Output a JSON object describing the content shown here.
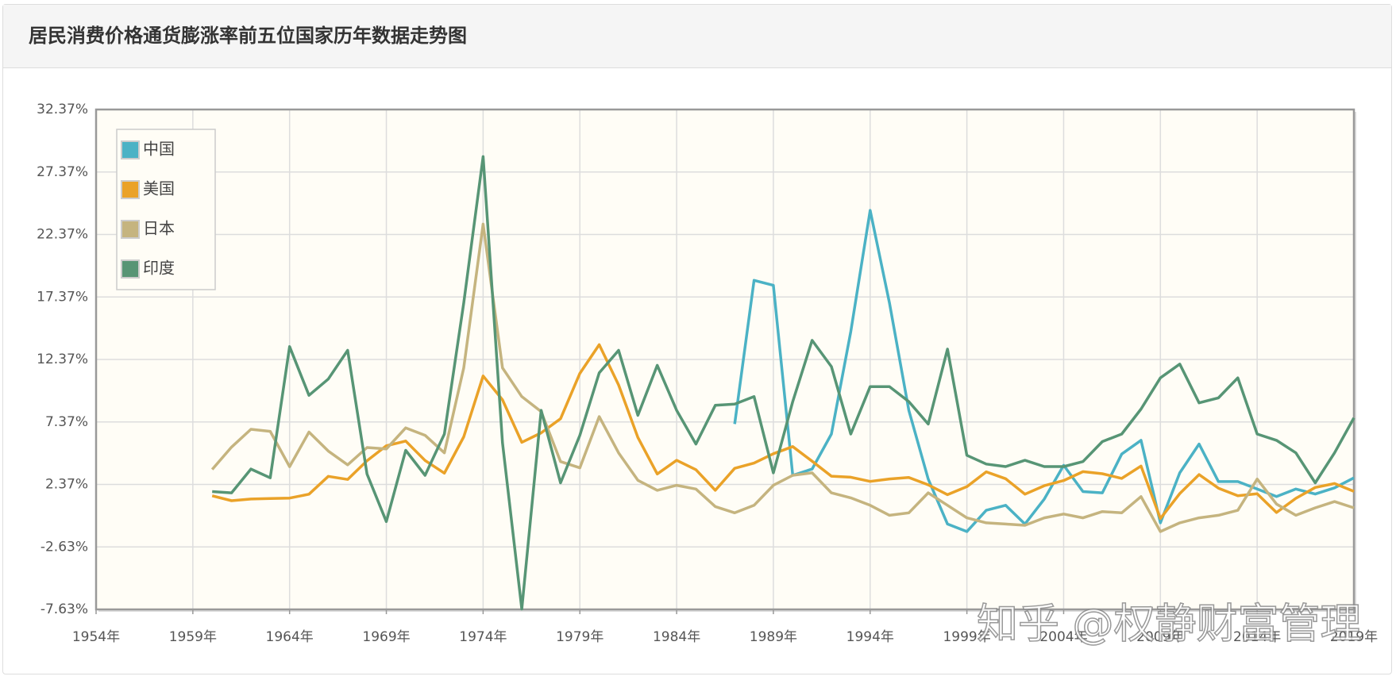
{
  "title": "居民消费价格通货膨涨率前五位国家历年数据走势图",
  "watermark": "知乎 @权静财富管理",
  "chart_data": {
    "type": "line",
    "x": [
      1960,
      1961,
      1962,
      1963,
      1964,
      1965,
      1966,
      1967,
      1968,
      1969,
      1970,
      1971,
      1972,
      1973,
      1974,
      1975,
      1976,
      1977,
      1978,
      1979,
      1980,
      1981,
      1982,
      1983,
      1984,
      1985,
      1986,
      1987,
      1988,
      1989,
      1990,
      1991,
      1992,
      1993,
      1994,
      1995,
      1996,
      1997,
      1998,
      1999,
      2000,
      2001,
      2002,
      2003,
      2004,
      2005,
      2006,
      2007,
      2008,
      2009,
      2010,
      2011,
      2012,
      2013,
      2014,
      2015,
      2016,
      2017,
      2018,
      2019
    ],
    "series": [
      {
        "name": "中国",
        "color": "#4bb2c5",
        "values": [
          null,
          null,
          null,
          null,
          null,
          null,
          null,
          null,
          null,
          null,
          null,
          null,
          null,
          null,
          null,
          null,
          null,
          null,
          null,
          null,
          null,
          null,
          null,
          null,
          null,
          null,
          null,
          7.2,
          18.7,
          18.3,
          3.1,
          3.6,
          6.4,
          14.6,
          24.3,
          16.9,
          8.3,
          2.8,
          -0.8,
          -1.4,
          0.3,
          0.7,
          -0.8,
          1.2,
          3.9,
          1.8,
          1.7,
          4.8,
          5.9,
          -0.7,
          3.3,
          5.6,
          2.6,
          2.6,
          2.0,
          1.4,
          2.0,
          1.6,
          2.1,
          2.9
        ]
      },
      {
        "name": "美国",
        "color": "#eaa228",
        "values": [
          1.46,
          1.07,
          1.2,
          1.24,
          1.28,
          1.59,
          3.02,
          2.77,
          4.27,
          5.46,
          5.84,
          4.29,
          3.27,
          6.18,
          11.05,
          9.14,
          5.74,
          6.5,
          7.63,
          11.25,
          13.55,
          10.33,
          6.13,
          3.21,
          4.3,
          3.55,
          1.9,
          3.66,
          4.08,
          4.83,
          5.4,
          4.23,
          3.03,
          2.95,
          2.61,
          2.81,
          2.93,
          2.34,
          1.55,
          2.19,
          3.38,
          2.83,
          1.59,
          2.27,
          2.68,
          3.39,
          3.23,
          2.85,
          3.84,
          -0.36,
          1.64,
          3.16,
          2.07,
          1.46,
          1.62,
          0.12,
          1.26,
          2.13,
          2.44,
          1.81
        ]
      },
      {
        "name": "日本",
        "color": "#c5b47f",
        "values": [
          3.57,
          5.36,
          6.78,
          6.62,
          3.79,
          6.56,
          5.04,
          3.94,
          5.32,
          5.21,
          6.9,
          6.3,
          4.9,
          11.7,
          23.2,
          11.7,
          9.4,
          8.2,
          4.2,
          3.7,
          7.8,
          4.9,
          2.7,
          1.9,
          2.3,
          2.0,
          0.6,
          0.1,
          0.7,
          2.3,
          3.1,
          3.3,
          1.7,
          1.3,
          0.7,
          -0.1,
          0.1,
          1.7,
          0.7,
          -0.3,
          -0.7,
          -0.8,
          -0.9,
          -0.3,
          0.0,
          -0.3,
          0.2,
          0.1,
          1.4,
          -1.4,
          -0.7,
          -0.3,
          -0.1,
          0.3,
          2.8,
          0.8,
          -0.1,
          0.5,
          1.0,
          0.5
        ]
      },
      {
        "name": "印度",
        "color": "#579575",
        "values": [
          1.8,
          1.7,
          3.6,
          2.9,
          13.4,
          9.5,
          10.8,
          13.1,
          3.2,
          -0.6,
          5.1,
          3.1,
          6.4,
          16.9,
          28.6,
          5.7,
          -7.6,
          8.3,
          2.5,
          6.3,
          11.3,
          13.1,
          7.9,
          11.9,
          8.3,
          5.6,
          8.7,
          8.8,
          9.4,
          3.3,
          9.0,
          13.9,
          11.8,
          6.4,
          10.2,
          10.2,
          9.0,
          7.2,
          13.2,
          4.7,
          4.0,
          3.8,
          4.3,
          3.8,
          3.8,
          4.2,
          5.8,
          6.4,
          8.4,
          10.9,
          12.0,
          8.9,
          9.3,
          10.9,
          6.4,
          5.9,
          4.9,
          2.5,
          4.9,
          7.7
        ]
      }
    ],
    "xlim": [
      1954,
      2019
    ],
    "xticks": [
      {
        "value": 1954,
        "label": "1954年"
      },
      {
        "value": 1959,
        "label": "1959年"
      },
      {
        "value": 1964,
        "label": "1964年"
      },
      {
        "value": 1969,
        "label": "1969年"
      },
      {
        "value": 1974,
        "label": "1974年"
      },
      {
        "value": 1979,
        "label": "1979年"
      },
      {
        "value": 1984,
        "label": "1984年"
      },
      {
        "value": 1989,
        "label": "1989年"
      },
      {
        "value": 1994,
        "label": "1994年"
      },
      {
        "value": 1999,
        "label": "1999年"
      },
      {
        "value": 2004,
        "label": "2004年"
      },
      {
        "value": 2009,
        "label": "2009年"
      },
      {
        "value": 2014,
        "label": "2014年"
      },
      {
        "value": 2019,
        "label": "2019年"
      }
    ],
    "ylim": [
      -7.63,
      32.37
    ],
    "yticks": [
      {
        "value": -7.63,
        "label": "-7.63%"
      },
      {
        "value": -2.63,
        "label": "-2.63%"
      },
      {
        "value": 2.37,
        "label": "2.37%"
      },
      {
        "value": 7.37,
        "label": "7.37%"
      },
      {
        "value": 12.37,
        "label": "12.37%"
      },
      {
        "value": 17.37,
        "label": "17.37%"
      },
      {
        "value": 22.37,
        "label": "22.37%"
      },
      {
        "value": 27.37,
        "label": "27.37%"
      },
      {
        "value": 32.37,
        "label": "32.37%"
      }
    ],
    "grid": true,
    "legend": "top-left"
  }
}
